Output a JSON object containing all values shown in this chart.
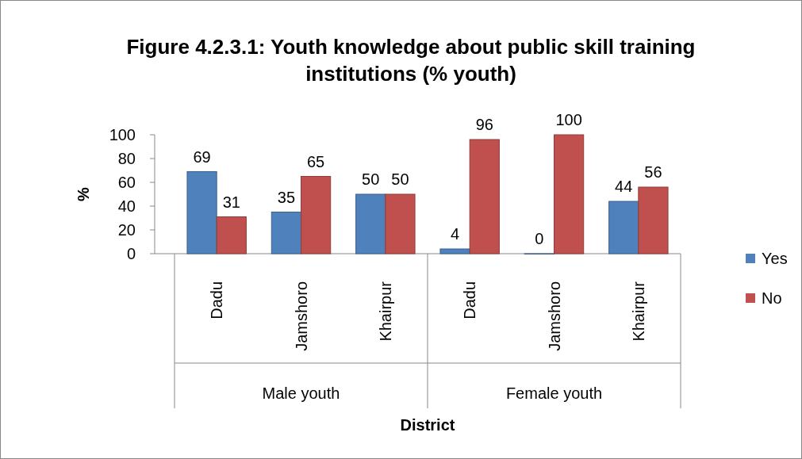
{
  "chart_data": {
    "type": "bar",
    "title": "Figure 4.2.3.1: Youth knowledge about public skill training institutions (% youth)",
    "xlabel": "District",
    "ylabel": "%",
    "categories": [
      "Dadu",
      "Jamshoro",
      "Khairpur",
      "Dadu",
      "Jamshoro",
      "Khairpur"
    ],
    "series": [
      {
        "name": "Yes",
        "color": "#4f81bd",
        "values": [
          69,
          35,
          50,
          4,
          0,
          44
        ]
      },
      {
        "name": "No",
        "color": "#c0504d",
        "values": [
          31,
          65,
          50,
          96,
          100,
          56
        ]
      }
    ],
    "ylim": [
      0,
      100
    ],
    "yticks": [
      0,
      20,
      40,
      60,
      80,
      100
    ],
    "grid": false,
    "legend": "right",
    "data_labels": true,
    "annotations": [
      "Male youth",
      "Female youth"
    ]
  }
}
